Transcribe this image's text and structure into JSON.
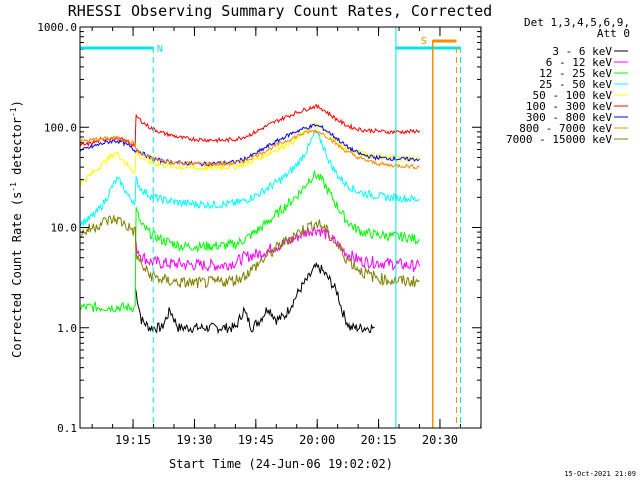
{
  "chart_data": {
    "type": "line",
    "title": "RHESSI Observing Summary Count Rates, Corrected",
    "xlabel": "Start Time (24-Jun-06 19:02:02)",
    "ylabel_main": "Corrected Count Rate (s",
    "ylabel_sup1": "-1",
    "ylabel_mid": " detector",
    "ylabel_sup2": "-1",
    "ylabel_end": ")",
    "y_scale": "log",
    "ylim": [
      0.1,
      1000
    ],
    "xlim_minutes": [
      0,
      98
    ],
    "x_ticks": [
      {
        "label": "19:15",
        "value": 12.97
      },
      {
        "label": "19:30",
        "value": 27.97
      },
      {
        "label": "19:45",
        "value": 42.97
      },
      {
        "label": "20:00",
        "value": 57.97
      },
      {
        "label": "20:15",
        "value": 72.97
      },
      {
        "label": "20:30",
        "value": 87.97
      }
    ],
    "y_ticks": [
      {
        "label": "0.1",
        "value": 0.1
      },
      {
        "label": "1.0",
        "value": 1
      },
      {
        "label": "10.0",
        "value": 10
      },
      {
        "label": "100.0",
        "value": 100
      },
      {
        "label": "1000.0",
        "value": 1000
      }
    ],
    "legend_header": [
      "Det 1,3,4,5,6,9,",
      "Att 0"
    ],
    "legend_position": "right",
    "series": [
      {
        "name": "3 - 6 keV",
        "color": "#000000",
        "points": [
          [
            13.5,
            2.5
          ],
          [
            15,
            1.2
          ],
          [
            17,
            1.0
          ],
          [
            20,
            1.0
          ],
          [
            22,
            1.5
          ],
          [
            24,
            1.0
          ],
          [
            30,
            1.0
          ],
          [
            38,
            1.0
          ],
          [
            40,
            1.5
          ],
          [
            42,
            1.0
          ],
          [
            44,
            1.2
          ],
          [
            46,
            1.6
          ],
          [
            48,
            1.2
          ],
          [
            50,
            1.3
          ],
          [
            52,
            1.8
          ],
          [
            54,
            2.5
          ],
          [
            56,
            3.2
          ],
          [
            57.5,
            4.0
          ],
          [
            59,
            3.8
          ],
          [
            61,
            3.0
          ],
          [
            63,
            2.2
          ],
          [
            64,
            1.5
          ],
          [
            65,
            1.2
          ],
          [
            66,
            1.0
          ],
          [
            70,
            1.0
          ],
          [
            72,
            1.0
          ]
        ]
      },
      {
        "name": "6 - 12 keV",
        "color": "#ff00ff",
        "points": [
          [
            13.7,
            6.5
          ],
          [
            15,
            5.2
          ],
          [
            17,
            4.6
          ],
          [
            20,
            4.4
          ],
          [
            25,
            4.3
          ],
          [
            30,
            4.2
          ],
          [
            35,
            4.2
          ],
          [
            38,
            4.5
          ],
          [
            40,
            5.0
          ],
          [
            42,
            5.3
          ],
          [
            44,
            5.5
          ],
          [
            46,
            6.0
          ],
          [
            48,
            6.5
          ],
          [
            50,
            7.0
          ],
          [
            52,
            7.6
          ],
          [
            54,
            8.5
          ],
          [
            56,
            9.3
          ],
          [
            57.5,
            9.6
          ],
          [
            59,
            9.2
          ],
          [
            61,
            8.0
          ],
          [
            63,
            6.8
          ],
          [
            65,
            5.6
          ],
          [
            67,
            5.0
          ],
          [
            69,
            4.6
          ],
          [
            72,
            4.5
          ],
          [
            75,
            4.4
          ],
          [
            80,
            4.2
          ],
          [
            83,
            4.1
          ]
        ]
      },
      {
        "name": "12 - 25 keV",
        "color": "#00ff00",
        "points": [
          [
            0,
            1.6
          ],
          [
            7,
            1.6
          ],
          [
            13.5,
            1.6
          ],
          [
            13.7,
            15
          ],
          [
            15,
            10.5
          ],
          [
            17,
            8.8
          ],
          [
            20,
            7.5
          ],
          [
            25,
            6.5
          ],
          [
            30,
            6.5
          ],
          [
            35,
            6.6
          ],
          [
            38,
            6.8
          ],
          [
            40,
            7.5
          ],
          [
            42,
            8.5
          ],
          [
            44,
            9.8
          ],
          [
            46,
            11.5
          ],
          [
            48,
            13.5
          ],
          [
            50,
            16
          ],
          [
            52,
            19
          ],
          [
            54,
            23
          ],
          [
            56,
            30
          ],
          [
            57.5,
            34
          ],
          [
            59,
            30
          ],
          [
            61,
            22
          ],
          [
            63,
            16
          ],
          [
            65,
            12
          ],
          [
            67,
            10
          ],
          [
            69,
            9
          ],
          [
            72,
            8.5
          ],
          [
            75,
            8.3
          ],
          [
            80,
            8.0
          ],
          [
            83,
            7.5
          ]
        ]
      },
      {
        "name": "25 - 50 keV",
        "color": "#00ffff",
        "points": [
          [
            0,
            11
          ],
          [
            2,
            12
          ],
          [
            4,
            14
          ],
          [
            6,
            18
          ],
          [
            8,
            26
          ],
          [
            9,
            30
          ],
          [
            10,
            28
          ],
          [
            12,
            20
          ],
          [
            13.5,
            18
          ],
          [
            13.7,
            30
          ],
          [
            15,
            24
          ],
          [
            17,
            21
          ],
          [
            20,
            19
          ],
          [
            25,
            17.5
          ],
          [
            30,
            17
          ],
          [
            35,
            17
          ],
          [
            38,
            17.5
          ],
          [
            40,
            18.5
          ],
          [
            42,
            20
          ],
          [
            44,
            22
          ],
          [
            46,
            25
          ],
          [
            48,
            28
          ],
          [
            50,
            32
          ],
          [
            52,
            38
          ],
          [
            54,
            48
          ],
          [
            56,
            65
          ],
          [
            57.5,
            90
          ],
          [
            59,
            72
          ],
          [
            61,
            45
          ],
          [
            63,
            33
          ],
          [
            65,
            27
          ],
          [
            67,
            24
          ],
          [
            69,
            22
          ],
          [
            72,
            21
          ],
          [
            75,
            20
          ],
          [
            80,
            19.5
          ],
          [
            83,
            19
          ]
        ]
      },
      {
        "name": "50 - 100 keV",
        "color": "#ffff00",
        "points": [
          [
            0,
            28
          ],
          [
            2,
            32
          ],
          [
            4,
            38
          ],
          [
            6,
            45
          ],
          [
            8,
            53
          ],
          [
            9,
            55
          ],
          [
            10,
            50
          ],
          [
            12,
            40
          ],
          [
            13.5,
            36
          ],
          [
            13.7,
            60
          ],
          [
            15,
            50
          ],
          [
            17,
            45
          ],
          [
            20,
            42
          ],
          [
            25,
            40
          ],
          [
            30,
            39
          ],
          [
            35,
            40
          ],
          [
            38,
            41
          ],
          [
            40,
            43
          ],
          [
            42,
            46
          ],
          [
            44,
            50
          ],
          [
            46,
            55
          ],
          [
            48,
            60
          ],
          [
            50,
            66
          ],
          [
            52,
            72
          ],
          [
            54,
            82
          ],
          [
            56,
            95
          ],
          [
            57.5,
            105
          ],
          [
            59,
            98
          ],
          [
            61,
            82
          ],
          [
            63,
            70
          ],
          [
            65,
            62
          ],
          [
            67,
            57
          ],
          [
            69,
            54
          ],
          [
            72,
            52
          ],
          [
            75,
            50
          ],
          [
            80,
            49
          ],
          [
            83,
            48
          ]
        ]
      },
      {
        "name": "100 - 300 keV",
        "color": "#ff0000",
        "points": [
          [
            0,
            65
          ],
          [
            2,
            68
          ],
          [
            4,
            72
          ],
          [
            6,
            76
          ],
          [
            8,
            78
          ],
          [
            9,
            77
          ],
          [
            10,
            76
          ],
          [
            12,
            70
          ],
          [
            13.5,
            66
          ],
          [
            13.7,
            130
          ],
          [
            15,
            115
          ],
          [
            17,
            100
          ],
          [
            20,
            88
          ],
          [
            25,
            78
          ],
          [
            30,
            75
          ],
          [
            35,
            74
          ],
          [
            38,
            76
          ],
          [
            40,
            80
          ],
          [
            42,
            86
          ],
          [
            44,
            95
          ],
          [
            46,
            105
          ],
          [
            48,
            115
          ],
          [
            50,
            125
          ],
          [
            52,
            135
          ],
          [
            54,
            145
          ],
          [
            56,
            155
          ],
          [
            57.5,
            162
          ],
          [
            59,
            155
          ],
          [
            61,
            135
          ],
          [
            63,
            118
          ],
          [
            65,
            105
          ],
          [
            67,
            98
          ],
          [
            69,
            94
          ],
          [
            72,
            92
          ],
          [
            75,
            90
          ],
          [
            80,
            90
          ],
          [
            83,
            92
          ]
        ]
      },
      {
        "name": "300 - 800 keV",
        "color": "#0000ff",
        "points": [
          [
            0,
            58
          ],
          [
            2,
            62
          ],
          [
            4,
            66
          ],
          [
            6,
            70
          ],
          [
            8,
            73
          ],
          [
            9,
            73
          ],
          [
            10,
            72
          ],
          [
            12,
            65
          ],
          [
            13.5,
            58
          ],
          [
            13.7,
            60
          ],
          [
            15,
            56
          ],
          [
            17,
            50
          ],
          [
            20,
            46
          ],
          [
            25,
            44
          ],
          [
            30,
            43
          ],
          [
            35,
            44
          ],
          [
            38,
            45
          ],
          [
            40,
            48
          ],
          [
            42,
            52
          ],
          [
            44,
            58
          ],
          [
            46,
            65
          ],
          [
            48,
            72
          ],
          [
            50,
            80
          ],
          [
            52,
            88
          ],
          [
            54,
            95
          ],
          [
            56,
            100
          ],
          [
            57.5,
            105
          ],
          [
            59,
            100
          ],
          [
            61,
            88
          ],
          [
            63,
            76
          ],
          [
            65,
            65
          ],
          [
            67,
            58
          ],
          [
            69,
            53
          ],
          [
            72,
            50
          ],
          [
            75,
            49
          ],
          [
            80,
            48
          ],
          [
            83,
            48
          ]
        ]
      },
      {
        "name": "800 - 7000 keV",
        "color": "#ff8c00",
        "points": [
          [
            0,
            72
          ],
          [
            2,
            74
          ],
          [
            4,
            76
          ],
          [
            6,
            77
          ],
          [
            8,
            78
          ],
          [
            9,
            78
          ],
          [
            10,
            77
          ],
          [
            12,
            72
          ],
          [
            13.5,
            68
          ],
          [
            13.7,
            60
          ],
          [
            15,
            54
          ],
          [
            17,
            50
          ],
          [
            20,
            46
          ],
          [
            25,
            44
          ],
          [
            30,
            43
          ],
          [
            35,
            43
          ],
          [
            38,
            44
          ],
          [
            40,
            46
          ],
          [
            42,
            50
          ],
          [
            44,
            55
          ],
          [
            46,
            60
          ],
          [
            48,
            66
          ],
          [
            50,
            72
          ],
          [
            52,
            78
          ],
          [
            54,
            85
          ],
          [
            56,
            90
          ],
          [
            57.5,
            92
          ],
          [
            59,
            88
          ],
          [
            61,
            78
          ],
          [
            63,
            66
          ],
          [
            65,
            58
          ],
          [
            67,
            52
          ],
          [
            69,
            48
          ],
          [
            72,
            44
          ],
          [
            75,
            42
          ],
          [
            80,
            41
          ],
          [
            83,
            40
          ]
        ]
      },
      {
        "name": "7000 - 15000 keV",
        "color": "#808000",
        "points": [
          [
            0,
            8.5
          ],
          [
            2,
            9.5
          ],
          [
            4,
            10.5
          ],
          [
            6,
            11.5
          ],
          [
            8,
            12
          ],
          [
            9,
            12
          ],
          [
            10,
            11.5
          ],
          [
            12,
            10
          ],
          [
            13.5,
            9
          ],
          [
            13.7,
            5.5
          ],
          [
            15,
            4.2
          ],
          [
            17,
            3.4
          ],
          [
            20,
            3.0
          ],
          [
            25,
            2.8
          ],
          [
            30,
            2.8
          ],
          [
            35,
            2.9
          ],
          [
            38,
            3.0
          ],
          [
            40,
            3.3
          ],
          [
            42,
            3.8
          ],
          [
            44,
            4.5
          ],
          [
            46,
            5.3
          ],
          [
            48,
            6.2
          ],
          [
            50,
            7.2
          ],
          [
            52,
            8.2
          ],
          [
            54,
            9.2
          ],
          [
            56,
            10.2
          ],
          [
            57.5,
            11
          ],
          [
            59,
            10.5
          ],
          [
            61,
            8.5
          ],
          [
            63,
            6.5
          ],
          [
            65,
            5.0
          ],
          [
            67,
            4.2
          ],
          [
            69,
            3.6
          ],
          [
            72,
            3.2
          ],
          [
            75,
            3.0
          ],
          [
            80,
            2.9
          ],
          [
            83,
            2.9
          ]
        ]
      }
    ],
    "annotations": [
      {
        "text": "N",
        "color": "#00e5e5"
      },
      {
        "text": "S",
        "color": "#ff8c00"
      }
    ],
    "footer_timestamp": "15-Oct-2021 21:09"
  }
}
